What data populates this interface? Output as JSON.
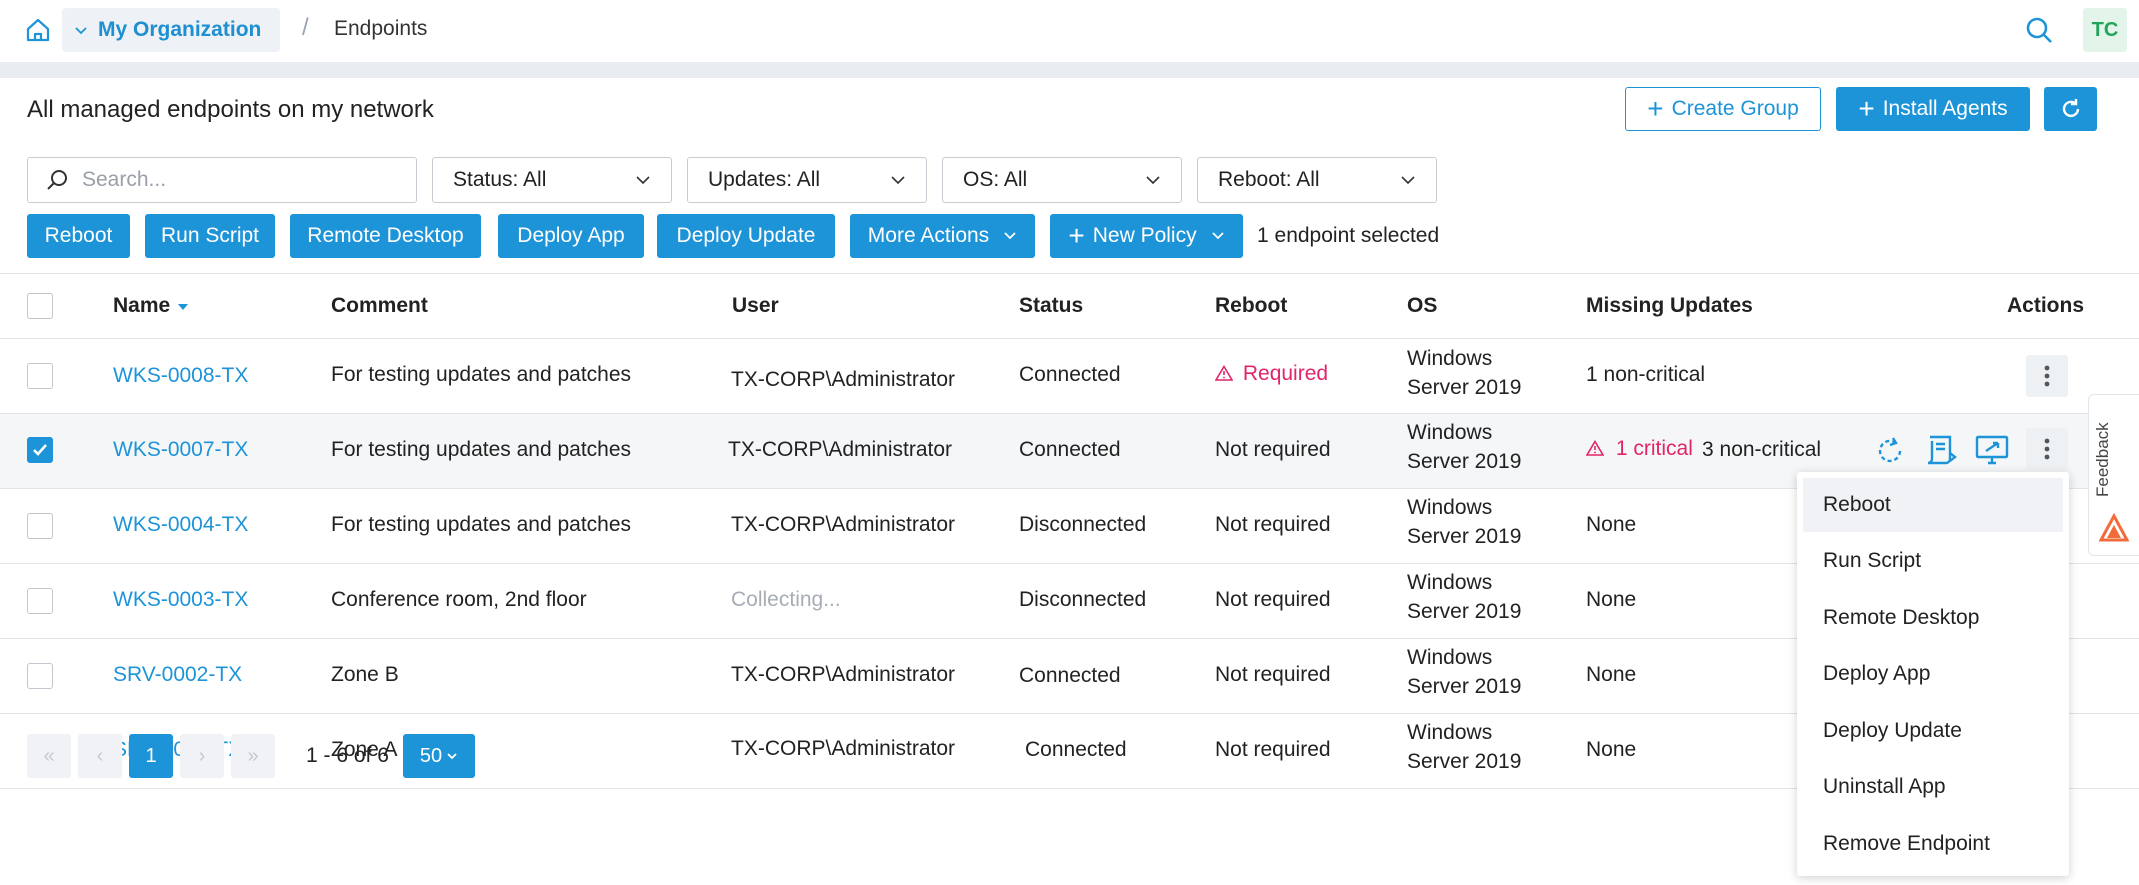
{
  "header": {
    "org_name": "My Organization",
    "breadcrumb_current": "Endpoints",
    "avatar_initials": "TC"
  },
  "page": {
    "title": "All managed endpoints on my network",
    "create_group": "Create Group",
    "install_agents": "Install Agents"
  },
  "filters": {
    "search_placeholder": "Search...",
    "status": "Status: All",
    "updates": "Updates: All",
    "os": "OS: All",
    "reboot": "Reboot: All"
  },
  "actions": {
    "reboot": "Reboot",
    "run_script": "Run Script",
    "remote_desktop": "Remote Desktop",
    "deploy_app": "Deploy App",
    "deploy_update": "Deploy Update",
    "more_actions": "More Actions",
    "new_policy": "New Policy",
    "selection_info": "1 endpoint selected"
  },
  "table": {
    "columns": [
      "Name",
      "Comment",
      "User",
      "Status",
      "Reboot",
      "OS",
      "Missing Updates",
      "Actions"
    ],
    "rows": [
      {
        "name": "WKS-0008-TX",
        "comment": "For testing updates and patches",
        "user": "TX-CORP\\Administrator",
        "status": "Connected",
        "reboot": "Required",
        "os1": "Windows",
        "os2": "Server 2019",
        "critical": "",
        "updates": "1 non-critical",
        "selected": false
      },
      {
        "name": "WKS-0007-TX",
        "comment": "For testing updates and patches",
        "user": "TX-CORP\\Administrator",
        "status": "Connected",
        "reboot": "Not required",
        "os1": "Windows",
        "os2": "Server 2019",
        "critical": "1 critical",
        "updates": "3 non-critical",
        "selected": true
      },
      {
        "name": "WKS-0004-TX",
        "comment": "For testing updates and patches",
        "user": "TX-CORP\\Administrator",
        "status": "Disconnected",
        "reboot": "Not required",
        "os1": "Windows",
        "os2": "Server 2019",
        "critical": "",
        "updates": "None",
        "selected": false
      },
      {
        "name": "WKS-0003-TX",
        "comment": "Conference room, 2nd floor",
        "user": "Collecting...",
        "status": "Disconnected",
        "reboot": "Not required",
        "os1": "Windows",
        "os2": "Server 2019",
        "critical": "",
        "updates": "None",
        "selected": false
      },
      {
        "name": "SRV-0002-TX",
        "comment": "Zone B",
        "user": "TX-CORP\\Administrator",
        "status": "Connected",
        "reboot": "Not required",
        "os1": "Windows",
        "os2": "Server 2019",
        "critical": "",
        "updates": "None",
        "selected": false
      },
      {
        "name": "SRV-0001-TX",
        "comment": "Zone A",
        "user": "TX-CORP\\Administrator",
        "status": "Connected",
        "reboot": "Not required",
        "os1": "Windows",
        "os2": "Server 2019",
        "critical": "",
        "updates": "None",
        "selected": false
      }
    ]
  },
  "context_menu": {
    "items": [
      "Reboot",
      "Run Script",
      "Remote Desktop",
      "Deploy App",
      "Deploy Update",
      "Uninstall App",
      "Remove Endpoint"
    ]
  },
  "pagination": {
    "current_page": "1",
    "range": "1 - 6 of 6",
    "page_size": "50"
  },
  "feedback": {
    "label": "Feedback"
  },
  "colors": {
    "accent": "#1e94d8",
    "danger": "#e2246a",
    "avatar_bg": "#e3f5ea",
    "avatar_fg": "#22a559"
  }
}
